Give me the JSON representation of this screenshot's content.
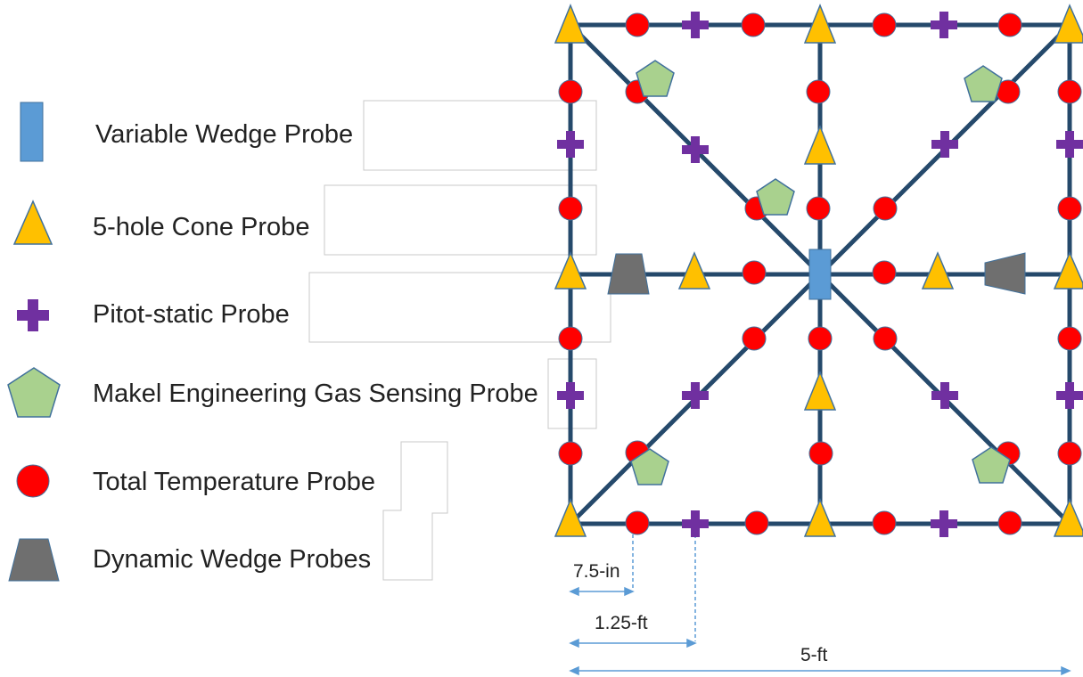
{
  "legend": {
    "items": [
      {
        "label": "Variable Wedge Probe",
        "icon": "variable-wedge-probe-icon"
      },
      {
        "label": "5-hole Cone Probe",
        "icon": "cone-probe-icon"
      },
      {
        "label": "Pitot-static Probe",
        "icon": "pitot-static-probe-icon"
      },
      {
        "label": "Makel Engineering Gas Sensing Probe",
        "icon": "gas-sensing-probe-icon"
      },
      {
        "label": "Total Temperature Probe",
        "icon": "total-temperature-probe-icon"
      },
      {
        "label": "Dynamic Wedge Probes",
        "icon": "dynamic-wedge-probe-icon"
      }
    ]
  },
  "dimensions": {
    "small": "7.5-in",
    "medium": "1.25-ft",
    "overall": "5-ft"
  },
  "colors": {
    "rake_line": "#25496b",
    "wedge_blue": "#5b9bd5",
    "cone_yellow": "#ffc000",
    "pitot_purple": "#7030a0",
    "gas_green": "#a9d18e",
    "temp_red": "#ff0000",
    "dynamic_gray": "#6f6f6f",
    "dimension_blue": "#5b9bd5"
  }
}
